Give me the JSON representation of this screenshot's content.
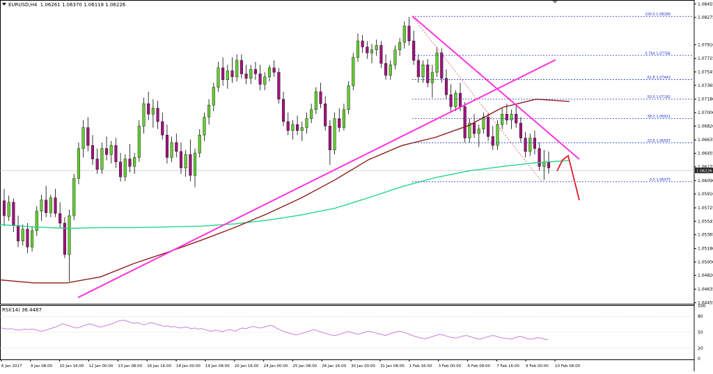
{
  "header": {
    "symbol": "EURUSD,H4",
    "ohlc": "1.06261 1.06370 1.06118 1.06226"
  },
  "rsi_header": {
    "label": "RSI(14) 36.4487"
  },
  "colors": {
    "bull": "#66cc33",
    "bear": "#a0147c",
    "ma_fast": "#1fd68a",
    "ma_slow": "#8b1a1a",
    "trendline": "#ff33dd",
    "fib": "#2233cc",
    "arrow": "#e0182a",
    "rsi": "#c77de0",
    "price_tag_bg": "#222222"
  },
  "chart_data": [
    {
      "type": "candlestick",
      "title": "EURUSD,H4",
      "ylim": [
        1.0444,
        1.0849
      ],
      "y_ticks": [
        1.08455,
        1.08275,
        1.0791,
        1.07725,
        1.07545,
        1.07365,
        1.0718,
        1.07,
        1.0682,
        1.06635,
        1.06455,
        1.06275,
        1.0609,
        1.0591,
        1.05725,
        1.05545,
        1.05365,
        1.0518,
        1.05,
        1.0482,
        1.04635,
        1.04455
      ],
      "y_tick_labels": [
        "1.08455",
        "1.08275",
        "1.07910",
        "1.07725",
        "1.07545",
        "1.07365",
        "1.07180",
        "1.07000",
        "1.06820",
        "1.06635",
        "1.06455",
        "1.06275",
        "1.06090",
        "1.05910",
        "1.05725",
        "1.05545",
        "1.05365",
        "1.05180",
        "1.05000",
        "1.04820",
        "1.04635",
        "1.04455"
      ],
      "x_tick_labels": [
        "6 Jan 2017",
        "9 Jan 08:00",
        "10 Jan 16:00",
        "12 Jan 00:00",
        "13 Jan 08:00",
        "16 Jan 16:00",
        "18 Jan 00:00",
        "19 Jan 08:00",
        "20 Jan 16:00",
        "24 Jan 00:00",
        "25 Jan 08:00",
        "26 Jan 16:00",
        "30 Jan 00:00",
        "31 Jan 08:00",
        "1 Feb 16:00",
        "3 Feb 00:00",
        "6 Feb 08:00",
        "7 Feb 16:00",
        "9 Feb 00:00",
        "10 Feb 08:00"
      ],
      "current_price": 1.06226,
      "current_price_label": "1.06226",
      "candles": [
        [
          1.0582,
          1.0598,
          1.0548,
          1.0562
        ],
        [
          1.0561,
          1.0589,
          1.0555,
          1.058
        ],
        [
          1.058,
          1.0585,
          1.054,
          1.0549
        ],
        [
          1.0549,
          1.0562,
          1.052,
          1.0528
        ],
        [
          1.0528,
          1.055,
          1.0522,
          1.0544
        ],
        [
          1.0544,
          1.0552,
          1.0512,
          1.052
        ],
        [
          1.052,
          1.0548,
          1.0514,
          1.0542
        ],
        [
          1.0542,
          1.0575,
          1.0535,
          1.0568
        ],
        [
          1.0568,
          1.059,
          1.0555,
          1.0583
        ],
        [
          1.0583,
          1.0602,
          1.056,
          1.0566
        ],
        [
          1.0566,
          1.059,
          1.056,
          1.0586
        ],
        [
          1.0586,
          1.0598,
          1.056,
          1.0565
        ],
        [
          1.0565,
          1.058,
          1.0545,
          1.0552
        ],
        [
          1.0552,
          1.056,
          1.0505,
          1.051
        ],
        [
          1.051,
          1.057,
          1.0474,
          1.0562
        ],
        [
          1.0562,
          1.0618,
          1.0556,
          1.0612
        ],
        [
          1.0612,
          1.066,
          1.0604,
          1.0652
        ],
        [
          1.0652,
          1.069,
          1.064,
          1.068
        ],
        [
          1.068,
          1.0694,
          1.0648,
          1.0656
        ],
        [
          1.0656,
          1.067,
          1.063,
          1.0638
        ],
        [
          1.0638,
          1.0652,
          1.0618,
          1.0624
        ],
        [
          1.0624,
          1.066,
          1.0618,
          1.0652
        ],
        [
          1.0652,
          1.0668,
          1.0636,
          1.0644
        ],
        [
          1.0644,
          1.0662,
          1.0632,
          1.0656
        ],
        [
          1.0656,
          1.0666,
          1.0626,
          1.0634
        ],
        [
          1.0634,
          1.0646,
          1.0608,
          1.0614
        ],
        [
          1.0614,
          1.0644,
          1.0608,
          1.0638
        ],
        [
          1.0638,
          1.0658,
          1.062,
          1.0628
        ],
        [
          1.0628,
          1.0646,
          1.0618,
          1.064
        ],
        [
          1.064,
          1.069,
          1.0634,
          1.0682
        ],
        [
          1.0682,
          1.072,
          1.0672,
          1.0712
        ],
        [
          1.0712,
          1.0728,
          1.069,
          1.0698
        ],
        [
          1.0698,
          1.0718,
          1.068,
          1.0706
        ],
        [
          1.0706,
          1.0716,
          1.0678,
          1.0688
        ],
        [
          1.0688,
          1.07,
          1.0664,
          1.067
        ],
        [
          1.067,
          1.0684,
          1.0632,
          1.064
        ],
        [
          1.064,
          1.0668,
          1.0634,
          1.066
        ],
        [
          1.066,
          1.0672,
          1.064,
          1.0648
        ],
        [
          1.0648,
          1.066,
          1.0618,
          1.0626
        ],
        [
          1.0626,
          1.065,
          1.0614,
          1.0644
        ],
        [
          1.0644,
          1.0664,
          1.0608,
          1.0616
        ],
        [
          1.0616,
          1.0652,
          1.06,
          1.0646
        ],
        [
          1.0646,
          1.0678,
          1.064,
          1.067
        ],
        [
          1.067,
          1.07,
          1.0662,
          1.0694
        ],
        [
          1.0694,
          1.0718,
          1.0684,
          1.071
        ],
        [
          1.071,
          1.074,
          1.0702,
          1.0734
        ],
        [
          1.0734,
          1.0768,
          1.0728,
          1.076
        ],
        [
          1.076,
          1.0774,
          1.0736,
          1.0744
        ],
        [
          1.0744,
          1.0764,
          1.0732,
          1.0756
        ],
        [
          1.0756,
          1.0774,
          1.074,
          1.0748
        ],
        [
          1.0748,
          1.0778,
          1.0742,
          1.077
        ],
        [
          1.077,
          1.0778,
          1.0746,
          1.0752
        ],
        [
          1.0752,
          1.0764,
          1.0738,
          1.0746
        ],
        [
          1.0746,
          1.0764,
          1.0738,
          1.0758
        ],
        [
          1.0758,
          1.0768,
          1.0744,
          1.0752
        ],
        [
          1.0752,
          1.0764,
          1.073,
          1.0738
        ],
        [
          1.0738,
          1.0754,
          1.073,
          1.0748
        ],
        [
          1.0748,
          1.0764,
          1.0742,
          1.076
        ],
        [
          1.076,
          1.077,
          1.0748,
          1.0754
        ],
        [
          1.0754,
          1.076,
          1.0712,
          1.0718
        ],
        [
          1.0718,
          1.0728,
          1.0682,
          1.0688
        ],
        [
          1.0688,
          1.07,
          1.067,
          1.0676
        ],
        [
          1.0676,
          1.069,
          1.0664,
          1.0684
        ],
        [
          1.0684,
          1.0696,
          1.067,
          1.0676
        ],
        [
          1.0676,
          1.0688,
          1.0662,
          1.068
        ],
        [
          1.068,
          1.07,
          1.0672,
          1.0692
        ],
        [
          1.0692,
          1.0712,
          1.0686,
          1.0704
        ],
        [
          1.0704,
          1.0734,
          1.0698,
          1.0728
        ],
        [
          1.0728,
          1.074,
          1.0706,
          1.0712
        ],
        [
          1.0712,
          1.0722,
          1.0676,
          1.0682
        ],
        [
          1.0682,
          1.069,
          1.063,
          1.065
        ],
        [
          1.065,
          1.07,
          1.0644,
          1.0692
        ],
        [
          1.0692,
          1.0706,
          1.0674,
          1.068
        ],
        [
          1.068,
          1.0712,
          1.0676,
          1.0704
        ],
        [
          1.0704,
          1.0742,
          1.0698,
          1.0736
        ],
        [
          1.0736,
          1.078,
          1.073,
          1.0774
        ],
        [
          1.0774,
          1.0806,
          1.0768,
          1.0796
        ],
        [
          1.0796,
          1.0804,
          1.078,
          1.0788
        ],
        [
          1.0788,
          1.0796,
          1.0772,
          1.078
        ],
        [
          1.078,
          1.0792,
          1.0766,
          1.0784
        ],
        [
          1.0784,
          1.0798,
          1.0776,
          1.079
        ],
        [
          1.079,
          1.0796,
          1.076,
          1.0766
        ],
        [
          1.0766,
          1.0778,
          1.0744,
          1.075
        ],
        [
          1.075,
          1.077,
          1.0744,
          1.0764
        ],
        [
          1.0764,
          1.079,
          1.0758,
          1.0784
        ],
        [
          1.0784,
          1.08,
          1.0776,
          1.0794
        ],
        [
          1.0794,
          1.0822,
          1.0786,
          1.0816
        ],
        [
          1.0816,
          1.0828,
          1.079,
          1.0796
        ],
        [
          1.0796,
          1.081,
          1.0764,
          1.077
        ],
        [
          1.077,
          1.0778,
          1.074,
          1.0748
        ],
        [
          1.0748,
          1.077,
          1.074,
          1.0764
        ],
        [
          1.0764,
          1.0772,
          1.0734,
          1.074
        ],
        [
          1.074,
          1.0764,
          1.072,
          1.0754
        ],
        [
          1.0754,
          1.0788,
          1.0748,
          1.078
        ],
        [
          1.078,
          1.0786,
          1.074,
          1.0746
        ],
        [
          1.0746,
          1.0758,
          1.0718,
          1.0724
        ],
        [
          1.0724,
          1.0738,
          1.0702,
          1.0708
        ],
        [
          1.0708,
          1.073,
          1.0702,
          1.0726
        ],
        [
          1.0726,
          1.074,
          1.0702,
          1.0708
        ],
        [
          1.0708,
          1.0714,
          1.066,
          1.0666
        ],
        [
          1.0666,
          1.0692,
          1.066,
          1.0686
        ],
        [
          1.0686,
          1.0698,
          1.0666,
          1.0672
        ],
        [
          1.0672,
          1.0684,
          1.0654,
          1.0678
        ],
        [
          1.0678,
          1.07,
          1.0672,
          1.0694
        ],
        [
          1.0694,
          1.07,
          1.0662,
          1.0668
        ],
        [
          1.0668,
          1.0682,
          1.065,
          1.0656
        ],
        [
          1.0656,
          1.069,
          1.065,
          1.0684
        ],
        [
          1.0684,
          1.0706,
          1.0678,
          1.0698
        ],
        [
          1.0698,
          1.0712,
          1.0684,
          1.069
        ],
        [
          1.069,
          1.0704,
          1.0678,
          1.0698
        ],
        [
          1.0698,
          1.071,
          1.068,
          1.0686
        ],
        [
          1.0686,
          1.0694,
          1.066,
          1.0666
        ],
        [
          1.0666,
          1.0674,
          1.064,
          1.0648
        ],
        [
          1.0648,
          1.0672,
          1.0642,
          1.0666
        ],
        [
          1.0666,
          1.0676,
          1.0644,
          1.0652
        ],
        [
          1.0652,
          1.066,
          1.0622,
          1.0628
        ],
        [
          1.0628,
          1.065,
          1.061,
          1.0634
        ],
        [
          1.0634,
          1.0648,
          1.0618,
          1.0626
        ]
      ],
      "ma_fast": [
        1.055,
        1.0547,
        1.0545,
        1.0546,
        1.0546,
        1.0547,
        1.0548,
        1.0551,
        1.0556,
        1.0563,
        1.0572,
        1.0586,
        1.0601,
        1.0613,
        1.0622,
        1.0628,
        1.0633,
        1.0636
      ],
      "ma_slow": [
        1.0476,
        1.0472,
        1.0472,
        1.048,
        1.0498,
        1.0513,
        1.0529,
        1.0546,
        1.0565,
        1.0586,
        1.061,
        1.0637,
        1.0656,
        1.0667,
        1.0683,
        1.0707,
        1.0718,
        1.0715
      ],
      "fibonacci": [
        {
          "label": "100.0 1.08289",
          "level": 1.08289
        },
        {
          "label": "0.764 1.07766",
          "level": 1.07766
        },
        {
          "label": "61.8 1.07443",
          "level": 1.07443
        },
        {
          "label": "50.0 1.07182",
          "level": 1.07182
        },
        {
          "label": "38.2 1.06921",
          "level": 1.06921
        },
        {
          "label": "23.6 1.06597",
          "level": 1.06597
        },
        {
          "label": "0.0 1.06075",
          "level": 1.06075
        }
      ]
    },
    {
      "type": "line",
      "title": "RSI(14) 36.4487",
      "ylim": [
        0,
        100
      ],
      "y_ticks": [
        100,
        80,
        50,
        20,
        0
      ],
      "y_tick_labels": [
        "100",
        "80",
        "50",
        "20",
        "0"
      ],
      "values": [
        58,
        57,
        56,
        57,
        55,
        54,
        55,
        56,
        55,
        56,
        55,
        53,
        52,
        54,
        56,
        58,
        60,
        63,
        66,
        64,
        62,
        60,
        58,
        59,
        62,
        64,
        66,
        64,
        62,
        60,
        61,
        63,
        65,
        67,
        70,
        72,
        73,
        71,
        69,
        67,
        68,
        66,
        64,
        66,
        68,
        67,
        65,
        63,
        61,
        62,
        60,
        61,
        59,
        58,
        60,
        59,
        57,
        58,
        56,
        57,
        55,
        53,
        52,
        54,
        53,
        51,
        53,
        55,
        54,
        52,
        56,
        58,
        57,
        59,
        61,
        60,
        58,
        59,
        61,
        63,
        62,
        58,
        55,
        52,
        50,
        48,
        46,
        45,
        47,
        49,
        51,
        53,
        55,
        53,
        51,
        49,
        47,
        45,
        44,
        45,
        47,
        49,
        51,
        50,
        48,
        46,
        48,
        50,
        52,
        51,
        49,
        47,
        46,
        44,
        46,
        48,
        50,
        52,
        51,
        49,
        47,
        44,
        42,
        40,
        39,
        38,
        40,
        42,
        44,
        46,
        45,
        43,
        41,
        40,
        39,
        41,
        43,
        44,
        42,
        40,
        38,
        37,
        39,
        41,
        43,
        44,
        42,
        40,
        39,
        38,
        37,
        39,
        41,
        42,
        40,
        38,
        37,
        38,
        40,
        39,
        37,
        36
      ]
    }
  ]
}
